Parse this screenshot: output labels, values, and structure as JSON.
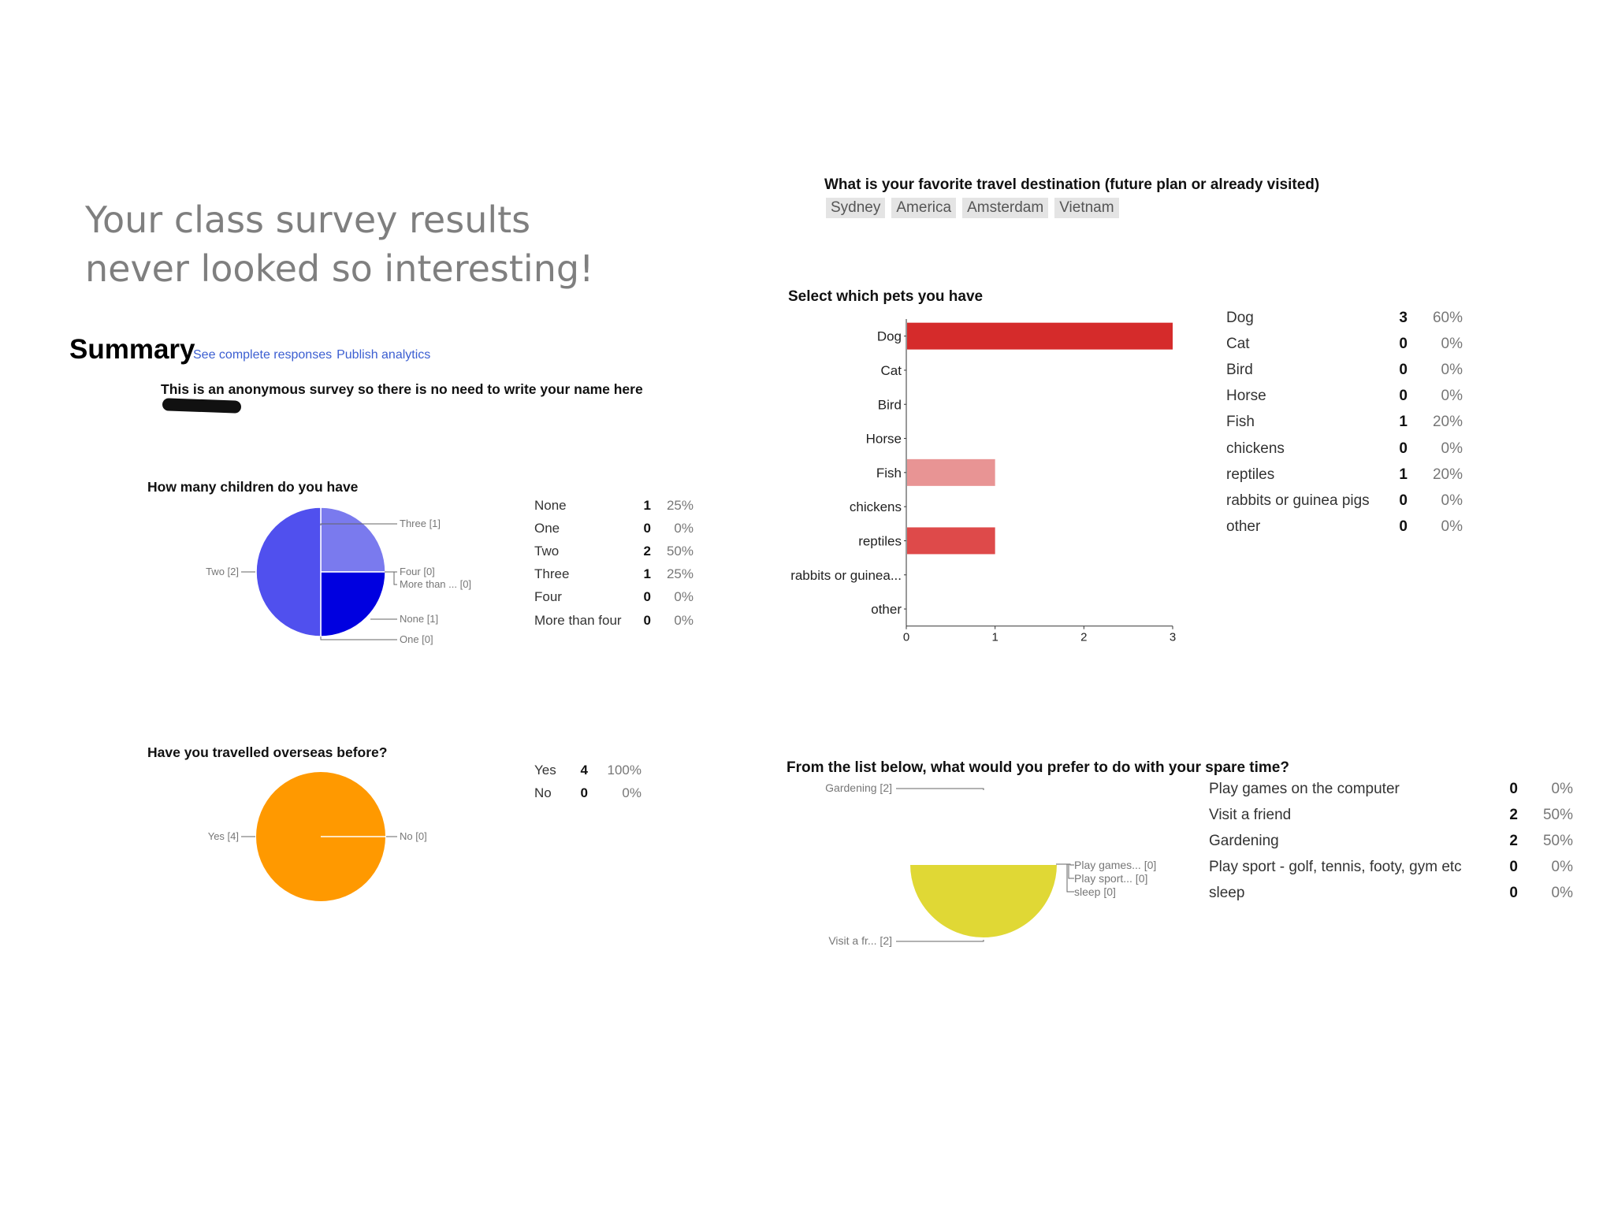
{
  "headline": {
    "line1": "Your class survey results",
    "line2": "never looked so interesting!"
  },
  "summary": {
    "title": "Summary",
    "link_responses": "See complete responses",
    "link_publish": "Publish analytics"
  },
  "anon_question": "This is an anonymous survey so there is no need to write your name here",
  "children": {
    "question": "How many children do you have",
    "rows": [
      {
        "label": "None",
        "count": "1",
        "pct": "25%"
      },
      {
        "label": "One",
        "count": "0",
        "pct": "0%"
      },
      {
        "label": "Two",
        "count": "2",
        "pct": "50%"
      },
      {
        "label": "Three",
        "count": "1",
        "pct": "25%"
      },
      {
        "label": "Four",
        "count": "0",
        "pct": "0%"
      },
      {
        "label": "More than four",
        "count": "0",
        "pct": "0%"
      }
    ],
    "pie_labels": {
      "three": "Three [1]",
      "four": "Four [0]",
      "more": "More than ... [0]",
      "none": "None [1]",
      "one": "One [0]",
      "two": "Two [2]"
    }
  },
  "travel": {
    "question": "Have you travelled overseas before?",
    "rows": [
      {
        "label": "Yes",
        "count": "4",
        "pct": "100%"
      },
      {
        "label": "No",
        "count": "0",
        "pct": "0%"
      }
    ],
    "pie_labels": {
      "yes": "Yes [4]",
      "no": "No [0]"
    }
  },
  "destination": {
    "question": "What is your favorite travel destination (future plan or already visited)",
    "answers": [
      "Sydney",
      "America",
      "Amsterdam",
      "Vietnam"
    ]
  },
  "pets": {
    "question": "Select which pets you have",
    "rows": [
      {
        "label": "Dog",
        "count": "3",
        "pct": "60%"
      },
      {
        "label": "Cat",
        "count": "0",
        "pct": "0%"
      },
      {
        "label": "Bird",
        "count": "0",
        "pct": "0%"
      },
      {
        "label": "Horse",
        "count": "0",
        "pct": "0%"
      },
      {
        "label": "Fish",
        "count": "1",
        "pct": "20%"
      },
      {
        "label": "chickens",
        "count": "0",
        "pct": "0%"
      },
      {
        "label": "reptiles",
        "count": "1",
        "pct": "20%"
      },
      {
        "label": "rabbits or guinea pigs",
        "count": "0",
        "pct": "0%"
      },
      {
        "label": "other",
        "count": "0",
        "pct": "0%"
      }
    ]
  },
  "spare_time": {
    "question": "From the list below, what would you prefer to do with your spare time?",
    "rows": [
      {
        "label": "Play games on the computer",
        "count": "0",
        "pct": "0%"
      },
      {
        "label": "Visit a friend",
        "count": "2",
        "pct": "50%"
      },
      {
        "label": "Gardening",
        "count": "2",
        "pct": "50%"
      },
      {
        "label": "Play sport - golf, tennis, footy, gym etc",
        "count": "0",
        "pct": "0%"
      },
      {
        "label": "sleep",
        "count": "0",
        "pct": "0%"
      }
    ],
    "pie_labels": {
      "gardening": "Gardening [2]",
      "visit": "Visit a fr... [2]",
      "games": "Play games... [0]",
      "sport": "Play sport... [0]",
      "sleep": "sleep [0]"
    }
  },
  "chart_data": [
    {
      "type": "pie",
      "categories": [
        "None",
        "One",
        "Two",
        "Three",
        "Four",
        "More than four"
      ],
      "values": [
        1,
        0,
        2,
        1,
        0,
        0
      ],
      "colors": [
        "#0000e0",
        "#3333dd",
        "#5050ee",
        "#7a7aee",
        "#9999f0",
        "#aaaaf3"
      ]
    },
    {
      "type": "pie",
      "categories": [
        "Yes",
        "No"
      ],
      "values": [
        4,
        0
      ],
      "colors": [
        "#ff9900",
        "#ffb347"
      ]
    },
    {
      "type": "bar",
      "orientation": "horizontal",
      "categories": [
        "Dog",
        "Cat",
        "Bird",
        "Horse",
        "Fish",
        "chickens",
        "reptiles",
        "rabbits or guinea...",
        "other"
      ],
      "values": [
        3,
        0,
        0,
        0,
        1,
        0,
        1,
        0,
        0
      ],
      "xlim": [
        0,
        3
      ],
      "xticks": [
        "0",
        "1",
        "2",
        "3"
      ],
      "colors": [
        "#d52b2b",
        "#d52b2b",
        "#d52b2b",
        "#d52b2b",
        "#e89494",
        "#d52b2b",
        "#de4a4a",
        "#d52b2b",
        "#d52b2b"
      ]
    },
    {
      "type": "pie",
      "categories": [
        "Gardening",
        "Visit a friend",
        "Play games on the computer",
        "Play sport - golf, tennis, footy, gym etc",
        "sleep"
      ],
      "values": [
        2,
        2,
        0,
        0,
        0
      ],
      "colors": [
        "#e6e06a",
        "#e0d835",
        "#cccc33",
        "#bbbb22",
        "#aaaa11"
      ]
    }
  ]
}
